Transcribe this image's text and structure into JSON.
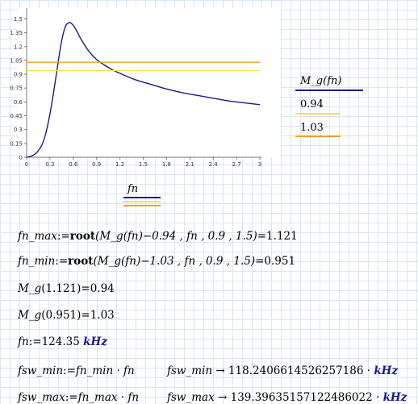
{
  "chart_data": {
    "type": "line",
    "xlabel": "fn",
    "ylabel": "",
    "xlim": [
      0,
      3
    ],
    "ylim": [
      0,
      1.6
    ],
    "x_ticks": [
      "0",
      "0.3",
      "0.6",
      "0.9",
      "1.2",
      "1.5",
      "1.8",
      "2.1",
      "2.4",
      "2.7",
      "3"
    ],
    "y_ticks": [
      "0",
      "0.15",
      "0.3",
      "0.45",
      "0.6",
      "0.75",
      "0.9",
      "1.05",
      "1.2",
      "1.35",
      "1.5"
    ],
    "series": [
      {
        "name": "M_g(fn)",
        "color": "#1a1a8c",
        "x": [
          0,
          0.05,
          0.1,
          0.15,
          0.2,
          0.25,
          0.3,
          0.35,
          0.4,
          0.45,
          0.5,
          0.55,
          0.6,
          0.65,
          0.7,
          0.8,
          0.9,
          1.0,
          1.1,
          1.2,
          1.4,
          1.6,
          1.8,
          2.0,
          2.2,
          2.4,
          2.6,
          2.8,
          3.0
        ],
        "values": [
          0,
          0.01,
          0.03,
          0.07,
          0.14,
          0.27,
          0.47,
          0.72,
          1.0,
          1.26,
          1.42,
          1.46,
          1.43,
          1.36,
          1.28,
          1.15,
          1.06,
          1.0,
          0.95,
          0.91,
          0.84,
          0.79,
          0.74,
          0.7,
          0.67,
          0.64,
          0.61,
          0.59,
          0.57
        ]
      },
      {
        "name": "0.94",
        "color": "#f2e24a",
        "x": [
          0,
          3
        ],
        "values": [
          0.94,
          0.94
        ]
      },
      {
        "name": "1.03",
        "color": "#f0a020",
        "x": [
          0,
          3
        ],
        "values": [
          1.03,
          1.03
        ]
      }
    ],
    "legend": "right"
  },
  "legend": {
    "title": "M_g(fn)",
    "entry1": "0.94",
    "entry2": "1.03",
    "x_legend": "fn"
  },
  "worksheet": {
    "line1": {
      "lhs": "fn_max",
      "assign": ":=",
      "func": "root",
      "arg_open": "(M_g(fn)",
      "arg_rest": "−0.94 , fn , 0.9 , 1.5)",
      "result": "=1.121"
    },
    "line2": {
      "lhs": "fn_min",
      "assign": ":=",
      "func": "root",
      "arg_open": "(M_g(fn)",
      "arg_rest": "−1.03 , fn , 0.9 , 1.5)",
      "result": "=0.951"
    },
    "line3": {
      "expr": "M_g",
      "arg": "(1.121)",
      "result": "=0.94"
    },
    "line4": {
      "expr": "M_g",
      "arg": "(0.951)",
      "result": "=1.03"
    },
    "line5": {
      "lhs": "fn",
      "assign": ":=",
      "value": "124.35",
      "unit": "kHz"
    },
    "line6": {
      "lhs": "fsw_min",
      "assign": ":=",
      "rhs": "fn_min · fn",
      "r_lhs": "fsw_min",
      "r_arrow": " → ",
      "r_value": "118.2406614526257186 ·",
      "r_unit": "kHz"
    },
    "line7": {
      "lhs": "fsw_max",
      "assign": ":=",
      "rhs": "fn_max · fn",
      "r_lhs": "fsw_max",
      "r_arrow": " → ",
      "r_value": "139.39635157122486022 ·",
      "r_unit": "kHz"
    }
  }
}
